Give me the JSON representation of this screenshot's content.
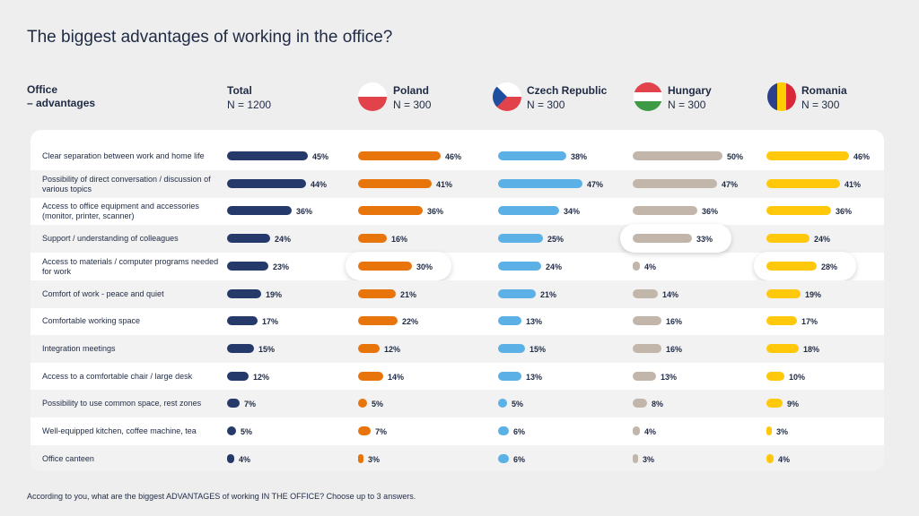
{
  "title": "The biggest advantages of working in the office?",
  "header": {
    "line1": "Office",
    "line2": "– advantages"
  },
  "footnote": "According to you, what are the biggest ADVANTAGES of working IN THE OFFICE? Choose up to 3 answers.",
  "chart_data": {
    "type": "bar",
    "orientation": "horizontal",
    "title": "The biggest advantages of working in the office?",
    "unit": "%",
    "categories": [
      "Clear separation between work and home life",
      "Possibility of direct conversation / discussion of various topics",
      "Access to office equipment and accessories (monitor, printer, scanner)",
      "Support / understanding of colleagues",
      "Access to materials / computer programs needed for work",
      "Comfort of work - peace and quiet",
      "Comfortable working space",
      "Integration meetings",
      "Access to a comfortable chair / large desk",
      "Possibility to use common space, rest zones",
      "Well-equipped kitchen, coffee machine, tea",
      "Office canteen"
    ],
    "series": [
      {
        "name": "Total",
        "n": "N = 1200",
        "color": "#253a6b",
        "values": [
          45,
          44,
          36,
          24,
          23,
          19,
          17,
          15,
          12,
          7,
          5,
          4
        ]
      },
      {
        "name": "Poland",
        "n": "N = 300",
        "color": "#e8740c",
        "values": [
          46,
          41,
          36,
          16,
          30,
          21,
          22,
          12,
          14,
          5,
          7,
          3
        ],
        "highlight_index": 4
      },
      {
        "name": "Czech Republic",
        "n": "N = 300",
        "color": "#5bb1e6",
        "values": [
          38,
          47,
          34,
          25,
          24,
          21,
          13,
          15,
          13,
          5,
          6,
          6
        ]
      },
      {
        "name": "Hungary",
        "n": "N = 300",
        "color": "#c2b5a9",
        "values": [
          50,
          47,
          36,
          33,
          4,
          14,
          16,
          16,
          13,
          8,
          4,
          3
        ],
        "highlight_index": 3
      },
      {
        "name": "Romania",
        "n": "N = 300",
        "color": "#ffc80a",
        "values": [
          46,
          41,
          36,
          24,
          28,
          19,
          17,
          18,
          10,
          9,
          3,
          4
        ],
        "highlight_index": 4
      }
    ]
  },
  "flags": {
    "poland": [
      "#ffffff",
      "#e2434b"
    ],
    "czech": [
      "#ffffff",
      "#e2434b",
      "#1e4e9e"
    ],
    "hungary": [
      "#e2434b",
      "#ffffff",
      "#3f9a46"
    ],
    "romania": [
      "#2b3f8a",
      "#ffcc00",
      "#d9273a"
    ]
  }
}
